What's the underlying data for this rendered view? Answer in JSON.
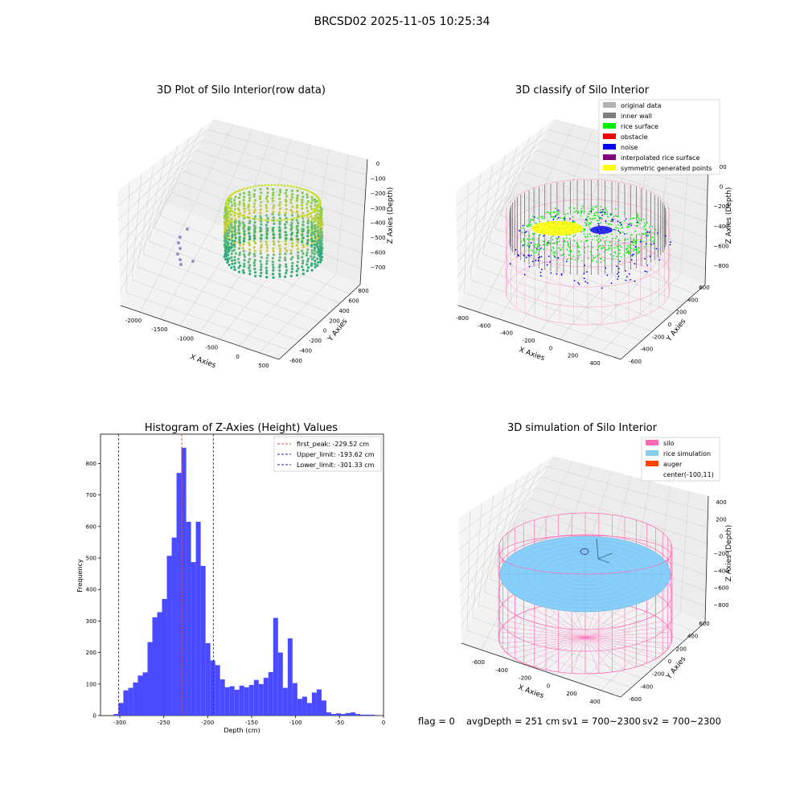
{
  "suptitle": "BRCSD02 2025-11-05 10:25:34",
  "footer": {
    "flag": "flag = 0",
    "avgDepth": "avgDepth = 251 cm",
    "sv1": "sv1 = 700~2300",
    "sv2": "sv2 = 700~2300"
  },
  "colors": {
    "hist_bar": "#4a4aff",
    "peak_line": "#e8452d",
    "limit_line": "#1f1fd6",
    "pink_wire": "#ff69b4",
    "rice_sim": "#87cefa",
    "auger": "#ff4500",
    "green": "#00ee00",
    "blue_noise": "#0000ee",
    "gray_wall": "#808080",
    "yellow": "#ffff00"
  },
  "panels": {
    "raw": {
      "title": "3D Plot of Silo Interior(row data)",
      "xlabel": "X Axies",
      "ylabel": "Y Axies",
      "zlabel": "Z Axies (Depth)",
      "xticks": [
        "-2000",
        "-1500",
        "-1000",
        "-500",
        "0",
        "500"
      ],
      "yticks": [
        "-600",
        "-400",
        "-200",
        "0",
        "200",
        "400",
        "600",
        "800"
      ],
      "zticks": [
        "0",
        "−100",
        "−200",
        "−300",
        "−400",
        "−500",
        "−600",
        "−700"
      ]
    },
    "classify": {
      "title": "3D classify of Silo Interior",
      "xlabel": "X Axies",
      "ylabel": "Y Axies",
      "zlabel": "Z Axies (Depth)",
      "xticks": [
        "-800",
        "-600",
        "-400",
        "-200",
        "0",
        "200",
        "400"
      ],
      "yticks": [
        "-600",
        "-400",
        "-200",
        "0",
        "200",
        "400",
        "600"
      ],
      "zticks": [
        "200",
        "0",
        "−200",
        "−400",
        "−600",
        "−800"
      ],
      "legend": [
        {
          "label": "original data",
          "color": "#b0b0b0"
        },
        {
          "label": "inner wall",
          "color": "#808080"
        },
        {
          "label": "rice surface",
          "color": "#00ee00"
        },
        {
          "label": "obstacle",
          "color": "#ee0000"
        },
        {
          "label": "noise",
          "color": "#0000ee"
        },
        {
          "label": "interpolated rice surface",
          "color": "#800080"
        },
        {
          "label": "symmetric generated points",
          "color": "#ffff00"
        }
      ]
    },
    "simulation": {
      "title": "3D simulation of Silo Interior",
      "xlabel": "X Axies",
      "ylabel": "Y Axies",
      "zlabel": "Z Axies (Depth)",
      "xticks": [
        "-600",
        "-400",
        "-200",
        "0",
        "200",
        "400"
      ],
      "yticks": [
        "-600",
        "-400",
        "-200",
        "0",
        "200",
        "400",
        "600"
      ],
      "zticks": [
        "400",
        "200",
        "0",
        "−200",
        "−400",
        "−600",
        "−800"
      ],
      "legend": [
        {
          "label": "silo",
          "color": "#ff69b4"
        },
        {
          "label": "rice simulation",
          "color": "#87ceeb"
        },
        {
          "label": "auger",
          "color": "#ff4500"
        },
        {
          "label": "center(-100,11)",
          "color": ""
        }
      ]
    }
  },
  "chart_data": [
    {
      "type": "bar",
      "title": "Histogram of Z-Axies (Height) Values",
      "xlabel": "Depth (cm)",
      "ylabel": "Frequency",
      "xlim": [
        -322,
        0
      ],
      "ylim": [
        0,
        893
      ],
      "xticks": [
        -300,
        -250,
        -200,
        -150,
        -100,
        -50,
        0
      ],
      "yticks": [
        0,
        100,
        200,
        300,
        400,
        500,
        600,
        700,
        800
      ],
      "bins": {
        "starts": [
          -307,
          -301.5,
          -296,
          -290.5,
          -285,
          -279.5,
          -274,
          -268.5,
          -263,
          -257.5,
          -252,
          -246.5,
          -241,
          -235.5,
          -230,
          -224.5,
          -219,
          -213.5,
          -208,
          -202.5,
          -197,
          -191.5,
          -186,
          -180.5,
          -175,
          -169.5,
          -164,
          -158.5,
          -153,
          -147.5,
          -142,
          -136.5,
          -131,
          -125.5,
          -120,
          -114.5,
          -109,
          -103.5,
          -98,
          -92.5,
          -87,
          -81.5,
          -76,
          -70.5,
          -65,
          -59.5,
          -54,
          -48.5,
          -43,
          -37.5,
          -32,
          -26.5,
          -21,
          -15.5
        ],
        "width": 5.5,
        "values": [
          5,
          40,
          80,
          88,
          105,
          127,
          137,
          233,
          312,
          328,
          370,
          507,
          565,
          770,
          850,
          615,
          487,
          615,
          475,
          230,
          175,
          160,
          115,
          90,
          93,
          82,
          95,
          90,
          97,
          113,
          100,
          120,
          138,
          310,
          200,
          88,
          245,
          103,
          53,
          60,
          40,
          73,
          83,
          48,
          10,
          5,
          7,
          5,
          8,
          10,
          5,
          3,
          3,
          3
        ]
      },
      "lines": [
        {
          "label": "first_peak: -229.52 cm",
          "x": -229.52,
          "color": "#e8452d"
        },
        {
          "label": "Upper_limit: -193.62 cm",
          "x": -193.62,
          "color": "#1f1fd6"
        },
        {
          "label": "Lower_limit: -301.33 cm",
          "x": -301.33,
          "color": "#1f1fd6"
        }
      ],
      "legend_position": "upper right"
    }
  ]
}
